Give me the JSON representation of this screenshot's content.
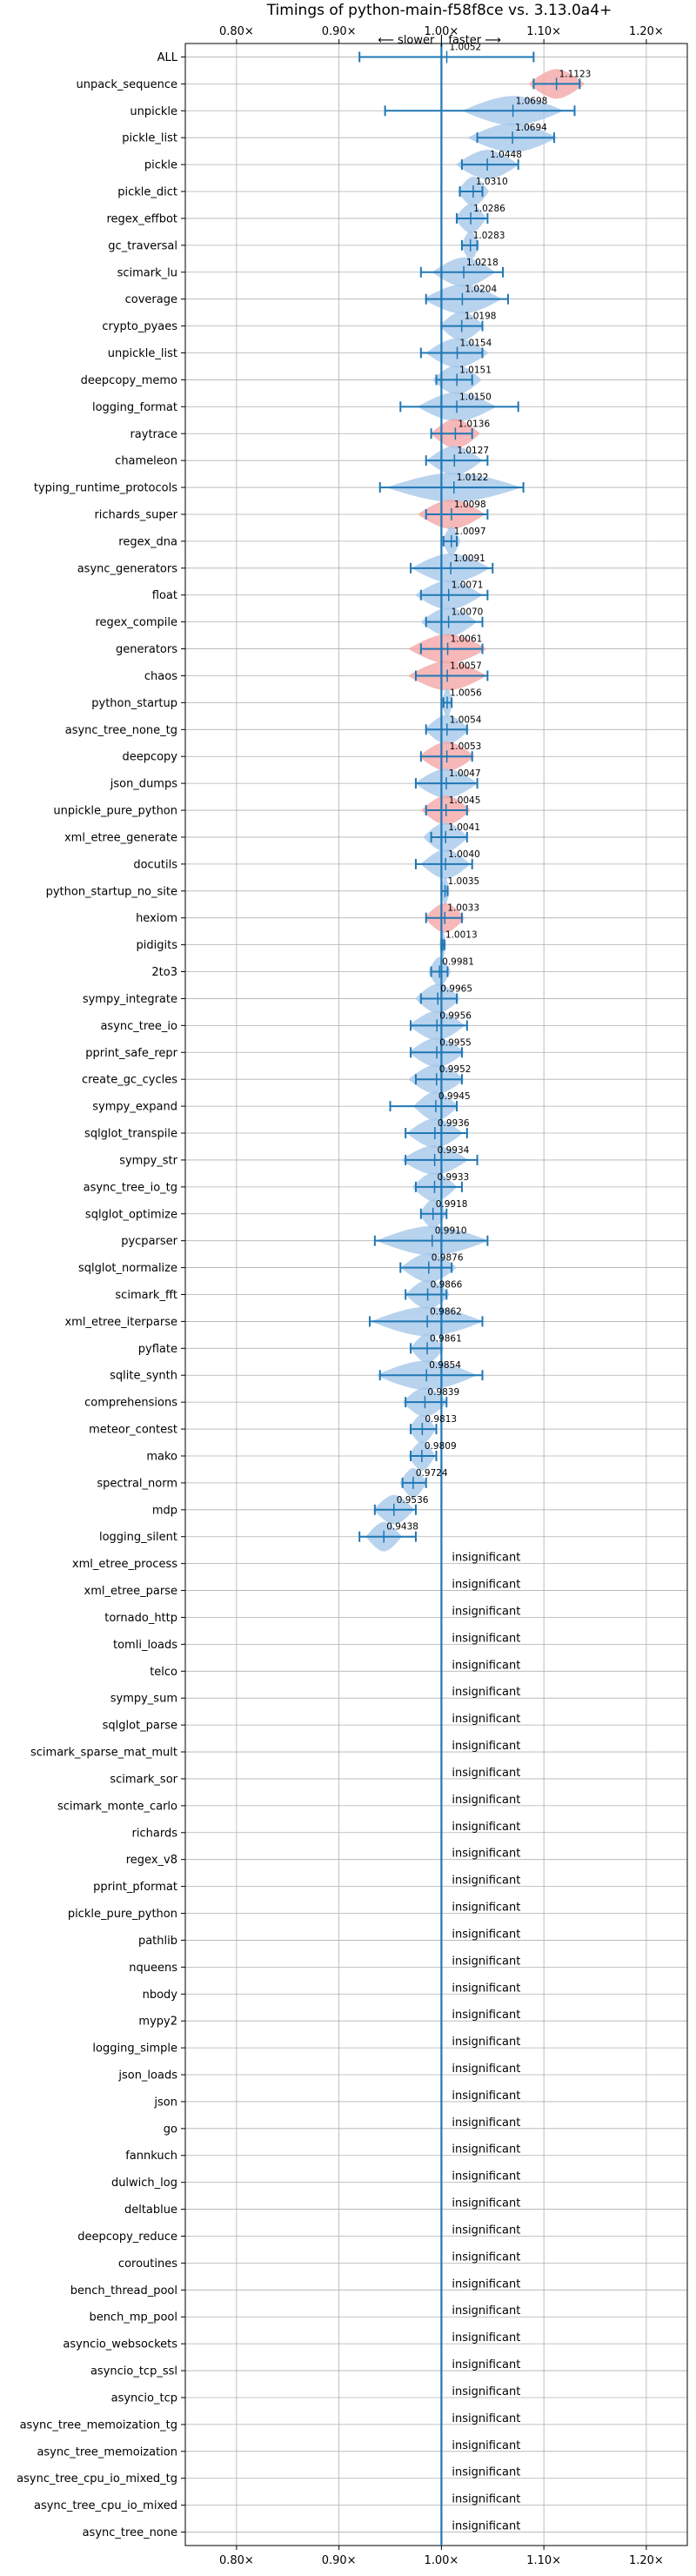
{
  "chart_data": {
    "type": "violin",
    "title": "Timings of python-main-f58f8ce vs. 3.13.0a4+",
    "direction_labels": {
      "slower": "⟵ slower",
      "separator": "|",
      "faster": "faster ⟶"
    },
    "xlim": [
      0.75,
      1.24
    ],
    "xticks": [
      0.8,
      0.9,
      1.0,
      1.1,
      1.2
    ],
    "xtick_labels": [
      "0.80×",
      "0.90×",
      "1.00×",
      "1.10×",
      "1.20×"
    ],
    "reference_line": 1.0,
    "insignificant_text": "insignificant",
    "colors": {
      "faster": "#a6c8ea",
      "slower": "#f4a6a6",
      "errorbar": "#1f77b4",
      "grid": "#b0b0b0"
    },
    "benchmarks": [
      {
        "name": "ALL",
        "value": 1.0052,
        "label": "1.0052",
        "lo": 0.92,
        "hi": 1.09,
        "width": 0,
        "color": "none"
      },
      {
        "name": "unpack_sequence",
        "value": 1.1123,
        "label": "1.1123",
        "lo": 1.09,
        "hi": 1.135,
        "width": 0.025,
        "color": "slower"
      },
      {
        "name": "unpickle",
        "value": 1.0698,
        "label": "1.0698",
        "lo": 0.945,
        "hi": 1.13,
        "width": 0.045,
        "color": "faster"
      },
      {
        "name": "pickle_list",
        "value": 1.0694,
        "label": "1.0694",
        "lo": 1.035,
        "hi": 1.11,
        "width": 0.04,
        "color": "faster"
      },
      {
        "name": "pickle",
        "value": 1.0448,
        "label": "1.0448",
        "lo": 1.02,
        "hi": 1.075,
        "width": 0.028,
        "color": "faster"
      },
      {
        "name": "pickle_dict",
        "value": 1.031,
        "label": "1.0310",
        "lo": 1.018,
        "hi": 1.04,
        "width": 0.014,
        "color": "faster"
      },
      {
        "name": "regex_effbot",
        "value": 1.0286,
        "label": "1.0286",
        "lo": 1.015,
        "hi": 1.045,
        "width": 0.014,
        "color": "faster"
      },
      {
        "name": "gc_traversal",
        "value": 1.0283,
        "label": "1.0283",
        "lo": 1.02,
        "hi": 1.035,
        "width": 0.008,
        "color": "faster"
      },
      {
        "name": "scimark_lu",
        "value": 1.0218,
        "label": "1.0218",
        "lo": 0.98,
        "hi": 1.06,
        "width": 0.028,
        "color": "faster"
      },
      {
        "name": "coverage",
        "value": 1.0204,
        "label": "1.0204",
        "lo": 0.985,
        "hi": 1.065,
        "width": 0.035,
        "color": "faster"
      },
      {
        "name": "crypto_pyaes",
        "value": 1.0198,
        "label": "1.0198",
        "lo": 1.0,
        "hi": 1.04,
        "width": 0.02,
        "color": "faster"
      },
      {
        "name": "unpickle_list",
        "value": 1.0154,
        "label": "1.0154",
        "lo": 0.98,
        "hi": 1.04,
        "width": 0.028,
        "color": "faster"
      },
      {
        "name": "deepcopy_memo",
        "value": 1.0151,
        "label": "1.0151",
        "lo": 0.995,
        "hi": 1.03,
        "width": 0.022,
        "color": "faster"
      },
      {
        "name": "logging_format",
        "value": 1.015,
        "label": "1.0150",
        "lo": 0.96,
        "hi": 1.075,
        "width": 0.035,
        "color": "faster"
      },
      {
        "name": "raytrace",
        "value": 1.0136,
        "label": "1.0136",
        "lo": 0.99,
        "hi": 1.03,
        "width": 0.022,
        "color": "slower"
      },
      {
        "name": "chameleon",
        "value": 1.0127,
        "label": "1.0127",
        "lo": 0.985,
        "hi": 1.045,
        "width": 0.025,
        "color": "faster"
      },
      {
        "name": "typing_runtime_protocols",
        "value": 1.0122,
        "label": "1.0122",
        "lo": 0.94,
        "hi": 1.08,
        "width": 0.06,
        "color": "faster"
      },
      {
        "name": "richards_super",
        "value": 1.0098,
        "label": "1.0098",
        "lo": 0.985,
        "hi": 1.045,
        "width": 0.03,
        "color": "slower"
      },
      {
        "name": "regex_dna",
        "value": 1.0097,
        "label": "1.0097",
        "lo": 1.002,
        "hi": 1.015,
        "width": 0.008,
        "color": "faster"
      },
      {
        "name": "async_generators",
        "value": 1.0091,
        "label": "1.0091",
        "lo": 0.97,
        "hi": 1.05,
        "width": 0.035,
        "color": "faster"
      },
      {
        "name": "float",
        "value": 1.0071,
        "label": "1.0071",
        "lo": 0.98,
        "hi": 1.045,
        "width": 0.03,
        "color": "faster"
      },
      {
        "name": "regex_compile",
        "value": 1.007,
        "label": "1.0070",
        "lo": 0.985,
        "hi": 1.04,
        "width": 0.025,
        "color": "faster"
      },
      {
        "name": "generators",
        "value": 1.0061,
        "label": "1.0061",
        "lo": 0.98,
        "hi": 1.04,
        "width": 0.035,
        "color": "slower"
      },
      {
        "name": "chaos",
        "value": 1.0057,
        "label": "1.0057",
        "lo": 0.975,
        "hi": 1.045,
        "width": 0.035,
        "color": "slower"
      },
      {
        "name": "python_startup",
        "value": 1.0056,
        "label": "1.0056",
        "lo": 1.002,
        "hi": 1.01,
        "width": 0.005,
        "color": "faster"
      },
      {
        "name": "async_tree_none_tg",
        "value": 1.0054,
        "label": "1.0054",
        "lo": 0.985,
        "hi": 1.025,
        "width": 0.02,
        "color": "faster"
      },
      {
        "name": "deepcopy",
        "value": 1.0053,
        "label": "1.0053",
        "lo": 0.98,
        "hi": 1.03,
        "width": 0.025,
        "color": "slower"
      },
      {
        "name": "json_dumps",
        "value": 1.0047,
        "label": "1.0047",
        "lo": 0.975,
        "hi": 1.035,
        "width": 0.028,
        "color": "faster"
      },
      {
        "name": "unpickle_pure_python",
        "value": 1.0045,
        "label": "1.0045",
        "lo": 0.985,
        "hi": 1.025,
        "width": 0.022,
        "color": "slower"
      },
      {
        "name": "xml_etree_generate",
        "value": 1.0041,
        "label": "1.0041",
        "lo": 0.99,
        "hi": 1.025,
        "width": 0.02,
        "color": "faster"
      },
      {
        "name": "docutils",
        "value": 1.004,
        "label": "1.0040",
        "lo": 0.975,
        "hi": 1.03,
        "width": 0.022,
        "color": "faster"
      },
      {
        "name": "python_startup_no_site",
        "value": 1.0035,
        "label": "1.0035",
        "lo": 1.0,
        "hi": 1.006,
        "width": 0.004,
        "color": "faster"
      },
      {
        "name": "hexiom",
        "value": 1.0033,
        "label": "1.0033",
        "lo": 0.985,
        "hi": 1.02,
        "width": 0.018,
        "color": "slower"
      },
      {
        "name": "pidigits",
        "value": 1.0013,
        "label": "1.0013",
        "lo": 1.0,
        "hi": 1.003,
        "width": 0.003,
        "color": "faster"
      },
      {
        "name": "2to3",
        "value": 0.9981,
        "label": "0.9981",
        "lo": 0.99,
        "hi": 1.006,
        "width": 0.01,
        "color": "faster"
      },
      {
        "name": "sympy_integrate",
        "value": 0.9965,
        "label": "0.9965",
        "lo": 0.98,
        "hi": 1.015,
        "width": 0.02,
        "color": "faster"
      },
      {
        "name": "async_tree_io",
        "value": 0.9956,
        "label": "0.9956",
        "lo": 0.97,
        "hi": 1.025,
        "width": 0.025,
        "color": "faster"
      },
      {
        "name": "pprint_safe_repr",
        "value": 0.9955,
        "label": "0.9955",
        "lo": 0.97,
        "hi": 1.02,
        "width": 0.025,
        "color": "faster"
      },
      {
        "name": "create_gc_cycles",
        "value": 0.9952,
        "label": "0.9952",
        "lo": 0.975,
        "hi": 1.02,
        "width": 0.025,
        "color": "faster"
      },
      {
        "name": "sympy_expand",
        "value": 0.9945,
        "label": "0.9945",
        "lo": 0.95,
        "hi": 1.015,
        "width": 0.02,
        "color": "faster"
      },
      {
        "name": "sqlglot_transpile",
        "value": 0.9936,
        "label": "0.9936",
        "lo": 0.965,
        "hi": 1.025,
        "width": 0.025,
        "color": "faster"
      },
      {
        "name": "sympy_str",
        "value": 0.9934,
        "label": "0.9934",
        "lo": 0.965,
        "hi": 1.035,
        "width": 0.03,
        "color": "faster"
      },
      {
        "name": "async_tree_io_tg",
        "value": 0.9933,
        "label": "0.9933",
        "lo": 0.975,
        "hi": 1.02,
        "width": 0.02,
        "color": "faster"
      },
      {
        "name": "sqlglot_optimize",
        "value": 0.9918,
        "label": "0.9918",
        "lo": 0.98,
        "hi": 1.005,
        "width": 0.012,
        "color": "faster"
      },
      {
        "name": "pycparser",
        "value": 0.991,
        "label": "0.9910",
        "lo": 0.935,
        "hi": 1.045,
        "width": 0.05,
        "color": "faster"
      },
      {
        "name": "sqlglot_normalize",
        "value": 0.9876,
        "label": "0.9876",
        "lo": 0.96,
        "hi": 1.01,
        "width": 0.025,
        "color": "faster"
      },
      {
        "name": "scimark_fft",
        "value": 0.9866,
        "label": "0.9866",
        "lo": 0.965,
        "hi": 1.005,
        "width": 0.02,
        "color": "faster"
      },
      {
        "name": "xml_etree_iterparse",
        "value": 0.9862,
        "label": "0.9862",
        "lo": 0.93,
        "hi": 1.04,
        "width": 0.05,
        "color": "faster"
      },
      {
        "name": "pyflate",
        "value": 0.9861,
        "label": "0.9861",
        "lo": 0.97,
        "hi": 1.0,
        "width": 0.015,
        "color": "faster"
      },
      {
        "name": "sqlite_synth",
        "value": 0.9854,
        "label": "0.9854",
        "lo": 0.94,
        "hi": 1.04,
        "width": 0.045,
        "color": "faster"
      },
      {
        "name": "comprehensions",
        "value": 0.9839,
        "label": "0.9839",
        "lo": 0.965,
        "hi": 1.005,
        "width": 0.02,
        "color": "faster"
      },
      {
        "name": "meteor_contest",
        "value": 0.9813,
        "label": "0.9813",
        "lo": 0.97,
        "hi": 0.995,
        "width": 0.012,
        "color": "faster"
      },
      {
        "name": "mako",
        "value": 0.9809,
        "label": "0.9809",
        "lo": 0.97,
        "hi": 0.995,
        "width": 0.012,
        "color": "faster"
      },
      {
        "name": "spectral_norm",
        "value": 0.9724,
        "label": "0.9724",
        "lo": 0.962,
        "hi": 0.985,
        "width": 0.012,
        "color": "faster"
      },
      {
        "name": "mdp",
        "value": 0.9536,
        "label": "0.9536",
        "lo": 0.935,
        "hi": 0.975,
        "width": 0.018,
        "color": "faster"
      },
      {
        "name": "logging_silent",
        "value": 0.9438,
        "label": "0.9438",
        "lo": 0.92,
        "hi": 0.975,
        "width": 0.016,
        "color": "faster"
      },
      {
        "name": "xml_etree_process",
        "insignificant": true
      },
      {
        "name": "xml_etree_parse",
        "insignificant": true
      },
      {
        "name": "tornado_http",
        "insignificant": true
      },
      {
        "name": "tomli_loads",
        "insignificant": true
      },
      {
        "name": "telco",
        "insignificant": true
      },
      {
        "name": "sympy_sum",
        "insignificant": true
      },
      {
        "name": "sqlglot_parse",
        "insignificant": true
      },
      {
        "name": "scimark_sparse_mat_mult",
        "insignificant": true
      },
      {
        "name": "scimark_sor",
        "insignificant": true
      },
      {
        "name": "scimark_monte_carlo",
        "insignificant": true
      },
      {
        "name": "richards",
        "insignificant": true
      },
      {
        "name": "regex_v8",
        "insignificant": true
      },
      {
        "name": "pprint_pformat",
        "insignificant": true
      },
      {
        "name": "pickle_pure_python",
        "insignificant": true
      },
      {
        "name": "pathlib",
        "insignificant": true
      },
      {
        "name": "nqueens",
        "insignificant": true
      },
      {
        "name": "nbody",
        "insignificant": true
      },
      {
        "name": "mypy2",
        "insignificant": true
      },
      {
        "name": "logging_simple",
        "insignificant": true
      },
      {
        "name": "json_loads",
        "insignificant": true
      },
      {
        "name": "json",
        "insignificant": true
      },
      {
        "name": "go",
        "insignificant": true
      },
      {
        "name": "fannkuch",
        "insignificant": true
      },
      {
        "name": "dulwich_log",
        "insignificant": true
      },
      {
        "name": "deltablue",
        "insignificant": true
      },
      {
        "name": "deepcopy_reduce",
        "insignificant": true
      },
      {
        "name": "coroutines",
        "insignificant": true
      },
      {
        "name": "bench_thread_pool",
        "insignificant": true
      },
      {
        "name": "bench_mp_pool",
        "insignificant": true
      },
      {
        "name": "asyncio_websockets",
        "insignificant": true
      },
      {
        "name": "asyncio_tcp_ssl",
        "insignificant": true
      },
      {
        "name": "asyncio_tcp",
        "insignificant": true
      },
      {
        "name": "async_tree_memoization_tg",
        "insignificant": true
      },
      {
        "name": "async_tree_memoization",
        "insignificant": true
      },
      {
        "name": "async_tree_cpu_io_mixed_tg",
        "insignificant": true
      },
      {
        "name": "async_tree_cpu_io_mixed",
        "insignificant": true
      },
      {
        "name": "async_tree_none",
        "insignificant": true
      }
    ]
  }
}
